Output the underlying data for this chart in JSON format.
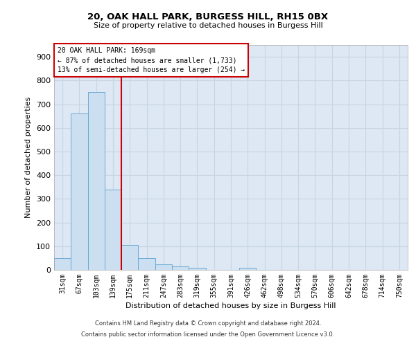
{
  "title": "20, OAK HALL PARK, BURGESS HILL, RH15 0BX",
  "subtitle": "Size of property relative to detached houses in Burgess Hill",
  "xlabel": "Distribution of detached houses by size in Burgess Hill",
  "ylabel": "Number of detached properties",
  "footnote1": "Contains HM Land Registry data © Crown copyright and database right 2024.",
  "footnote2": "Contains public sector information licensed under the Open Government Licence v3.0.",
  "bar_labels": [
    "31sqm",
    "67sqm",
    "103sqm",
    "139sqm",
    "175sqm",
    "211sqm",
    "247sqm",
    "283sqm",
    "319sqm",
    "355sqm",
    "391sqm",
    "426sqm",
    "462sqm",
    "498sqm",
    "534sqm",
    "570sqm",
    "606sqm",
    "642sqm",
    "678sqm",
    "714sqm",
    "750sqm"
  ],
  "bar_values": [
    50,
    660,
    750,
    340,
    105,
    50,
    22,
    15,
    9,
    0,
    0,
    8,
    0,
    0,
    0,
    0,
    0,
    0,
    0,
    0,
    0
  ],
  "bar_color": "#ccdff0",
  "bar_edge_color": "#6aaad4",
  "ylim": [
    0,
    950
  ],
  "yticks": [
    0,
    100,
    200,
    300,
    400,
    500,
    600,
    700,
    800,
    900
  ],
  "property_line_x": 3.5,
  "property_line_color": "#cc0000",
  "annotation_text1": "20 OAK HALL PARK: 169sqm",
  "annotation_text2": "← 87% of detached houses are smaller (1,733)",
  "annotation_text3": "13% of semi-detached houses are larger (254) →",
  "grid_color": "#c8d4e3",
  "background_color": "#dde8f4"
}
